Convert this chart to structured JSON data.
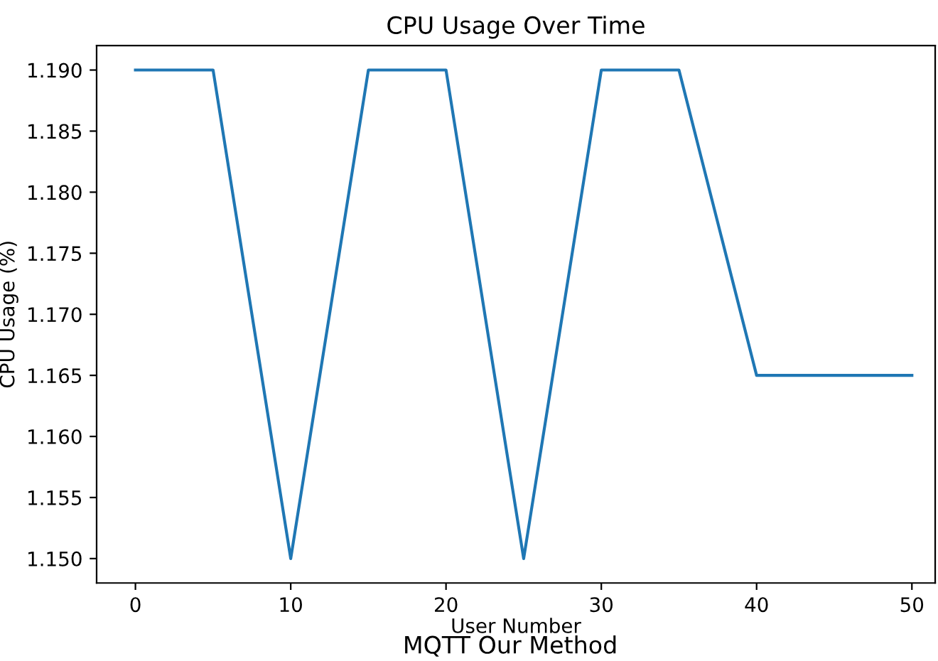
{
  "chart_data": {
    "type": "line",
    "title": "CPU Usage Over Time",
    "xlabel": "User Number",
    "ylabel": "CPU Usage (%)",
    "annotations": [
      "MQTT Our Method"
    ],
    "x": [
      0,
      5,
      10,
      15,
      20,
      25,
      30,
      35,
      40,
      45,
      50
    ],
    "series": [
      {
        "color": "#1f77b4",
        "values": [
          1.19,
          1.19,
          1.15,
          1.19,
          1.19,
          1.15,
          1.19,
          1.19,
          1.165,
          1.165,
          1.165
        ]
      }
    ],
    "xlim": [
      -2.5,
      51.5
    ],
    "xticks": [
      0,
      10,
      20,
      30,
      40,
      50
    ],
    "ylim": [
      1.148,
      1.192
    ],
    "yticks": [
      {
        "value": 1.15,
        "label": "1.150"
      },
      {
        "value": 1.155,
        "label": "1.155"
      },
      {
        "value": 1.16,
        "label": "1.160"
      },
      {
        "value": 1.165,
        "label": "1.165"
      },
      {
        "value": 1.17,
        "label": "1.170"
      },
      {
        "value": 1.175,
        "label": "1.175"
      },
      {
        "value": 1.18,
        "label": "1.180"
      },
      {
        "value": 1.185,
        "label": "1.185"
      },
      {
        "value": 1.19,
        "label": "1.190"
      }
    ],
    "grid": false,
    "marker": "none",
    "line_style": "solid"
  }
}
